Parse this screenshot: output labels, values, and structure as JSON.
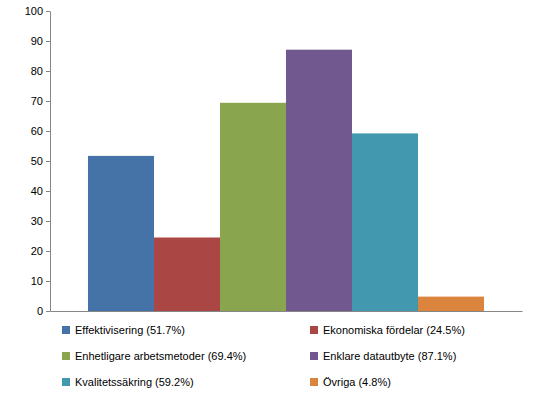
{
  "chart_data": {
    "type": "bar",
    "categories": [
      null
    ],
    "series": [
      {
        "name": "Effektivisering (51.7%)",
        "color": "#4572a7",
        "values": [
          51.7
        ]
      },
      {
        "name": "Ekonomiska fördelar (24.5%)",
        "color": "#aa4643",
        "values": [
          24.5
        ]
      },
      {
        "name": "Enhetligare arbetsmetoder (69.4%)",
        "color": "#89a54e",
        "values": [
          69.4
        ]
      },
      {
        "name": "Enklare datautbyte (87.1%)",
        "color": "#71588f",
        "values": [
          87.1
        ]
      },
      {
        "name": "Kvalitetssäkring (59.2%)",
        "color": "#4198af",
        "values": [
          59.2
        ]
      },
      {
        "name": "Övriga (4.8%)",
        "color": "#db843d",
        "values": [
          4.8
        ]
      }
    ],
    "ylim": [
      0,
      100
    ],
    "yticks": [
      0,
      10,
      20,
      30,
      40,
      50,
      60,
      70,
      80,
      90,
      100
    ],
    "grid": false,
    "legend": "bottom"
  }
}
